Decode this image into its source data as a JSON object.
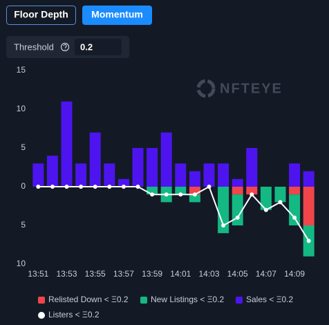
{
  "ui": {
    "buttons": [
      "Floor Depth",
      "Momentum"
    ],
    "threshold_label": "Threshold",
    "threshold_value": "0.2",
    "watermark": "NFTEYE"
  },
  "chart_data": {
    "type": "bar",
    "categories": [
      "13:51",
      null,
      "13:53",
      null,
      "13:55",
      null,
      "13:57",
      null,
      "13:59",
      null,
      "14:01",
      null,
      "14:03",
      null,
      "14:05",
      null,
      "14:07",
      null,
      "14:09",
      null
    ],
    "series": [
      {
        "name": "Relisted Down < Ξ0.2",
        "color": "#f0454b",
        "values": [
          0,
          0,
          0,
          0,
          0,
          0,
          0,
          0,
          0,
          0,
          0,
          -1,
          0,
          0,
          -1,
          -1,
          0,
          0,
          -1,
          -5
        ]
      },
      {
        "name": "New Listings < Ξ0.2",
        "color": "#14b882",
        "values": [
          0,
          0,
          0,
          0,
          0,
          0,
          0,
          0,
          -1,
          -2,
          -1,
          -1,
          0,
          -6,
          -4,
          0,
          -3,
          -2,
          -4,
          -4
        ]
      },
      {
        "name": "Sales < Ξ0.2",
        "color": "#4d14f0",
        "values": [
          3,
          4,
          11,
          3,
          7,
          3,
          1,
          5,
          5,
          7,
          3,
          2,
          3,
          3,
          1,
          5,
          0,
          0,
          3,
          2
        ]
      },
      {
        "name": "Listers < Ξ0.2",
        "color": "#ffffff",
        "type": "line",
        "values": [
          0,
          0,
          0,
          0,
          0,
          0,
          0,
          0,
          -1,
          -1,
          -1,
          -1,
          0,
          -5,
          -4,
          -1,
          -3,
          -2,
          -4,
          -7
        ]
      }
    ],
    "ylim": [
      -10,
      15
    ],
    "yticks": [
      15,
      10,
      5,
      0,
      {
        "value": -5,
        "label": "5"
      },
      {
        "value": -10,
        "label": "10"
      }
    ],
    "grid": false,
    "legend": "bottom"
  }
}
